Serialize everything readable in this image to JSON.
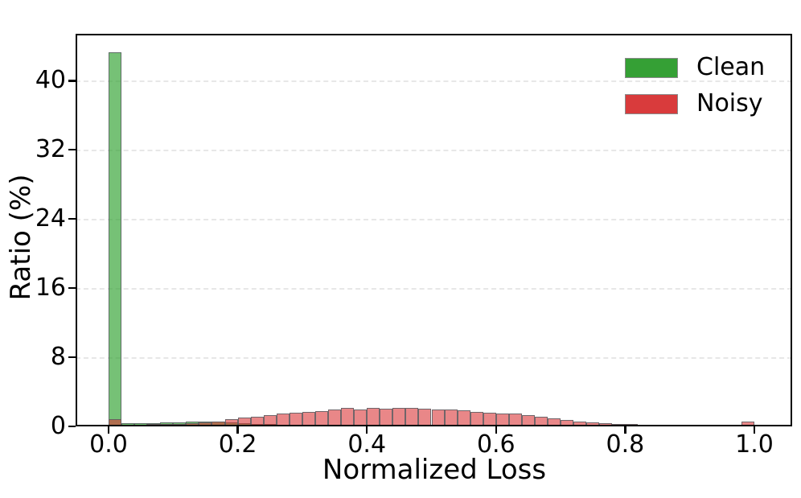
{
  "chart_data": {
    "type": "bar",
    "subtype": "histogram",
    "title": "",
    "xlabel": "Normalized Loss",
    "ylabel": "Ratio (%)",
    "xlim": [
      -0.051,
      1.058
    ],
    "ylim": [
      0,
      45.4
    ],
    "x_ticks": [
      0.0,
      0.2,
      0.4,
      0.6,
      0.8,
      1.0
    ],
    "x_tick_labels": [
      "0.0",
      "0.2",
      "0.4",
      "0.6",
      "0.8",
      "1.0"
    ],
    "y_ticks": [
      0,
      8,
      16,
      24,
      32,
      40
    ],
    "y_tick_labels": [
      "0",
      "8",
      "16",
      "24",
      "32",
      "40"
    ],
    "grid": "horizontal-dashed",
    "grid_color": "#e7e7e7",
    "bin_start": 0.0,
    "bin_width": 0.02,
    "legend_position": "top-right",
    "series": [
      {
        "name": "Clean",
        "legend_color": "#35a035",
        "fill": "rgba(44,160,44,0.65)",
        "css_class": "bar-clean",
        "values": [
          43.3,
          0.35,
          0.35,
          0.4,
          0.45,
          0.5,
          0.55,
          0.6,
          0.55,
          0.5,
          0.4,
          0.32,
          0.26,
          0.2,
          0.16,
          0.12,
          0.1,
          0.08,
          0.06,
          0.05,
          0.04,
          0.03,
          0.03,
          0.02,
          0.02,
          0.01,
          0.01,
          0.01,
          0.01,
          0.01,
          0,
          0,
          0,
          0,
          0,
          0,
          0,
          0,
          0,
          0,
          0,
          0,
          0,
          0,
          0,
          0,
          0,
          0,
          0,
          0
        ]
      },
      {
        "name": "Noisy",
        "legend_color": "#d93b3c",
        "fill": "rgba(217,48,50,0.58)",
        "css_class": "bar-noisy",
        "values": [
          0.85,
          0.2,
          0.2,
          0.25,
          0.28,
          0.3,
          0.35,
          0.45,
          0.55,
          0.8,
          1.0,
          1.15,
          1.3,
          1.45,
          1.55,
          1.65,
          1.8,
          1.95,
          2.1,
          2.0,
          2.15,
          2.05,
          2.1,
          2.15,
          2.05,
          2.0,
          1.95,
          1.85,
          1.7,
          1.6,
          1.5,
          1.45,
          1.3,
          1.1,
          0.9,
          0.75,
          0.6,
          0.5,
          0.4,
          0.3,
          0.25,
          0.2,
          0.15,
          0.1,
          0.08,
          0.05,
          0.04,
          0.03,
          0.02,
          0.55
        ]
      }
    ]
  }
}
